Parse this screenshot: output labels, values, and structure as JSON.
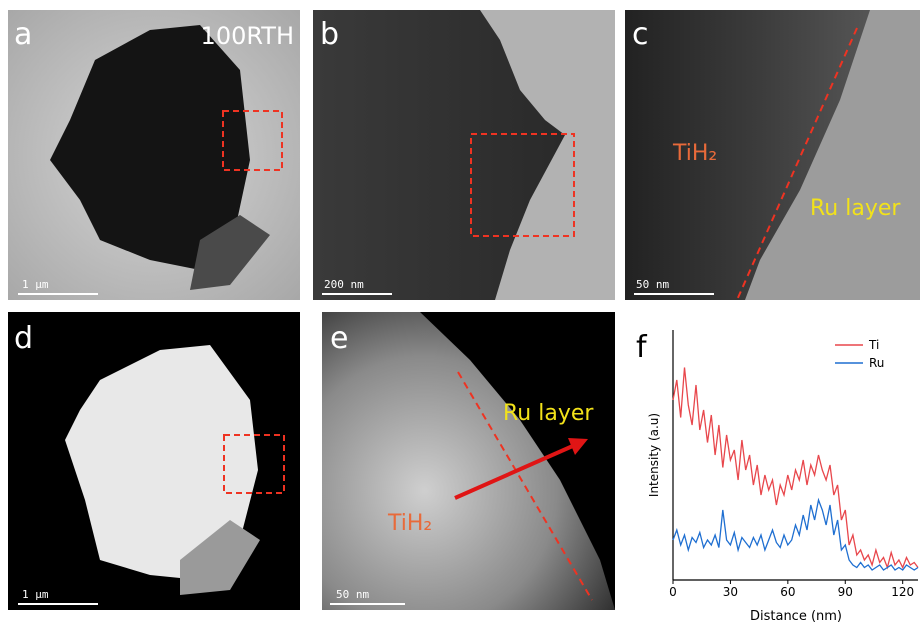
{
  "panels": {
    "a": {
      "label": "a",
      "tag": "100RTH",
      "scale_bar": "1 μm"
    },
    "b": {
      "label": "b",
      "scale_bar": "200 nm"
    },
    "c": {
      "label": "c",
      "phase": "TiH₂",
      "layer": "Ru layer",
      "scale_bar": "50 nm"
    },
    "d": {
      "label": "d",
      "scale_bar": "1 μm"
    },
    "e": {
      "label": "e",
      "phase": "TiH₂",
      "layer": "Ru layer",
      "scale_bar": "50 nm"
    }
  },
  "chart_data": {
    "type": "line",
    "label": "f",
    "x_label": "Distance (nm)",
    "y_label": "Intensity (a.u)",
    "x": [
      0,
      2,
      4,
      6,
      8,
      10,
      12,
      14,
      16,
      18,
      20,
      22,
      24,
      26,
      28,
      30,
      32,
      34,
      36,
      38,
      40,
      42,
      44,
      46,
      48,
      50,
      52,
      54,
      56,
      58,
      60,
      62,
      64,
      66,
      68,
      70,
      72,
      74,
      76,
      78,
      80,
      82,
      84,
      86,
      88,
      90,
      92,
      94,
      96,
      98,
      100,
      102,
      104,
      106,
      108,
      110,
      112,
      114,
      116,
      118,
      120,
      122,
      124,
      126,
      128
    ],
    "series": [
      {
        "name": "Ti",
        "color": "#e8474c",
        "values": [
          72,
          80,
          65,
          85,
          70,
          62,
          78,
          60,
          68,
          55,
          66,
          50,
          62,
          45,
          58,
          48,
          52,
          40,
          56,
          44,
          50,
          38,
          46,
          34,
          42,
          36,
          40,
          30,
          38,
          34,
          42,
          36,
          44,
          40,
          48,
          38,
          46,
          42,
          50,
          44,
          40,
          46,
          34,
          38,
          24,
          28,
          14,
          18,
          10,
          12,
          8,
          10,
          6,
          12,
          7,
          9,
          5,
          11,
          6,
          8,
          5,
          9,
          6,
          7,
          5
        ]
      },
      {
        "name": "Ru",
        "color": "#1f6fd1",
        "values": [
          16,
          20,
          14,
          18,
          12,
          17,
          15,
          19,
          13,
          16,
          14,
          18,
          13,
          28,
          16,
          14,
          19,
          12,
          17,
          15,
          13,
          17,
          14,
          18,
          12,
          16,
          20,
          15,
          13,
          18,
          14,
          16,
          22,
          18,
          26,
          20,
          30,
          24,
          32,
          28,
          22,
          30,
          18,
          24,
          12,
          14,
          8,
          6,
          5,
          7,
          5,
          6,
          4,
          5,
          6,
          4,
          5,
          6,
          4,
          5,
          4,
          6,
          5,
          4,
          5
        ]
      }
    ],
    "xlim": [
      0,
      128
    ],
    "xticks": [
      0,
      30,
      60,
      90,
      120
    ],
    "ylim": [
      0,
      100
    ],
    "legend": "upper right"
  }
}
